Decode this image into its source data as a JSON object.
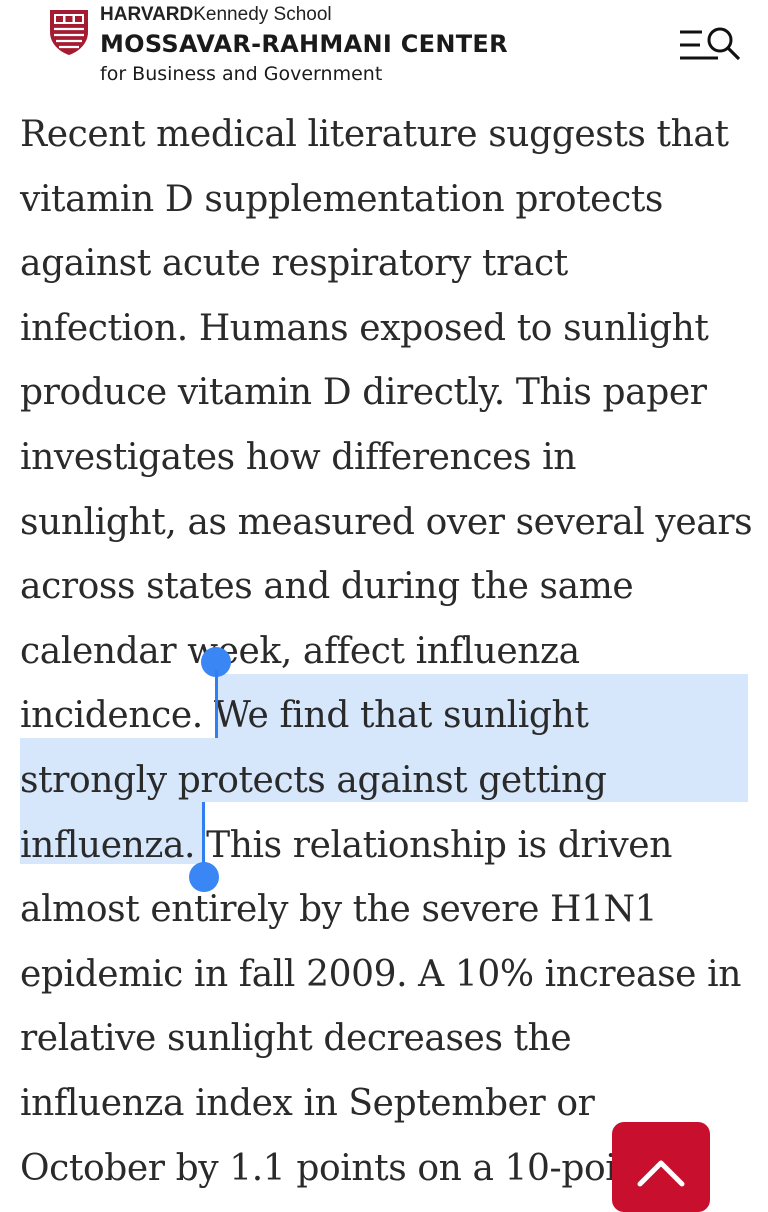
{
  "header": {
    "school_bold": "HARVARD",
    "school_rest": "Kennedy School",
    "center_name": "MOSSAVAR-RAHMANI CENTER",
    "center_sub": "for Business and Government",
    "menu_icon": "menu-search-icon"
  },
  "article": {
    "lines": [
      "Recent medical literature suggests that",
      "vitamin D supplementation protects",
      "against acute respiratory tract",
      "infection. Humans exposed to sunlight",
      "produce vitamin D directly. This paper",
      "investigates how differences in",
      "sunlight, as measured over several years",
      "across states and during the same",
      "calendar week, affect influenza"
    ],
    "line10_before": "incidence. ",
    "line10_selected": "We find that sunlight",
    "line11_selected": "strongly protects against getting",
    "line12_selected": "influenza.",
    "line12_after": " This relationship is driven",
    "lines_after": [
      "almost entirely by the severe H1N1",
      "epidemic in fall 2009. A 10% increase in",
      "relative sunlight decreases the",
      "influenza index in September or",
      "October by 1.1 points on a 10-poi"
    ]
  },
  "colors": {
    "brand_red": "#c8102e",
    "selection": "#d6e6fb",
    "handle": "#3a86f4"
  },
  "scroll_top_icon": "chevron-up-icon"
}
